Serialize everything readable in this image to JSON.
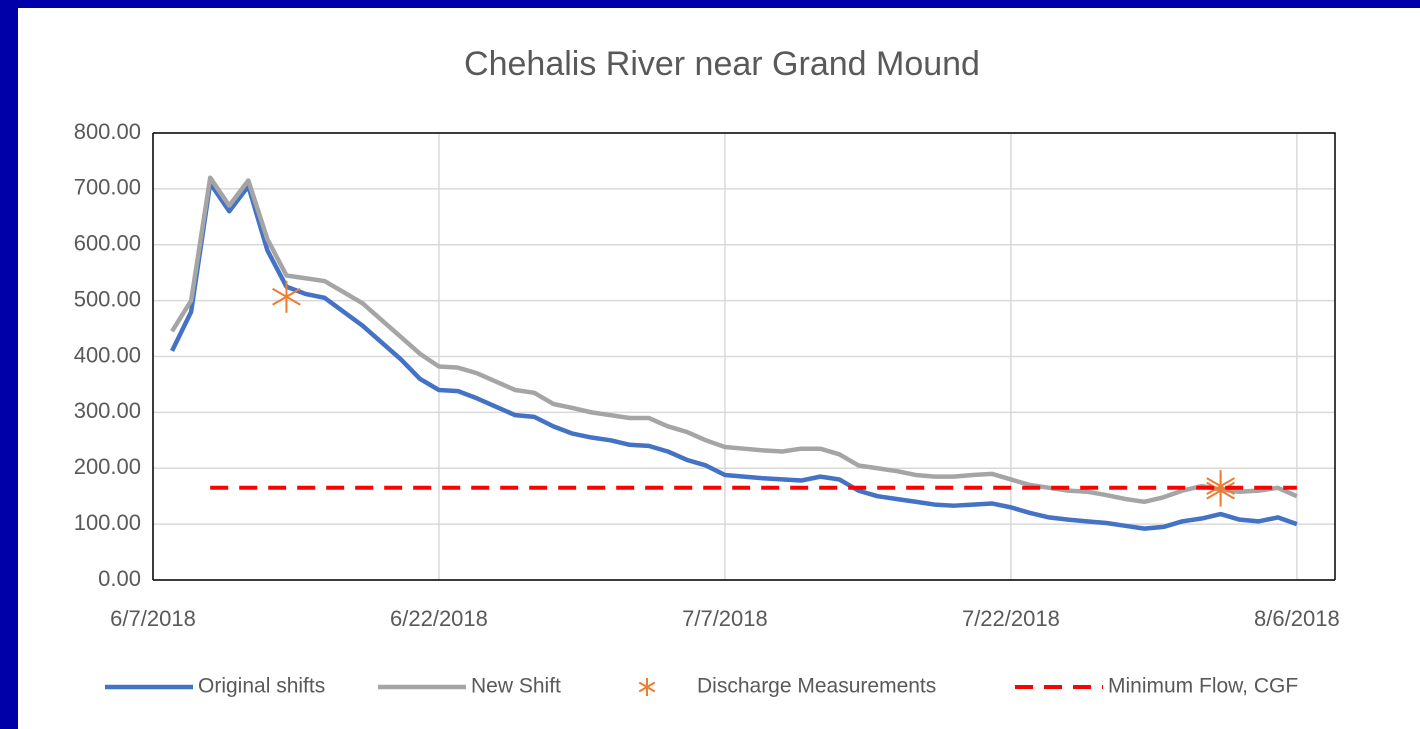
{
  "chart_data": {
    "type": "line",
    "title": "Chehalis River near Grand Mound",
    "xlim": [
      "6/7/2018",
      "8/8/2018"
    ],
    "xticks": [
      "6/7/2018",
      "6/22/2018",
      "7/7/2018",
      "7/22/2018",
      "8/6/2018"
    ],
    "ylim": [
      0,
      800
    ],
    "yticks": [
      {
        "value": 0,
        "label": "0.00"
      },
      {
        "value": 100,
        "label": "100.00"
      },
      {
        "value": 200,
        "label": "200.00"
      },
      {
        "value": 300,
        "label": "300.00"
      },
      {
        "value": 400,
        "label": "400.00"
      },
      {
        "value": 500,
        "label": "500.00"
      },
      {
        "value": 600,
        "label": "600.00"
      },
      {
        "value": 700,
        "label": "700.00"
      },
      {
        "value": 800,
        "label": "800.00"
      }
    ],
    "grid": true,
    "legend": "bottom",
    "series": [
      {
        "name": "Original shifts",
        "color": "#4472c4",
        "line_style": "solid",
        "x": [
          "6/8/2018",
          "6/9/2018",
          "6/10/2018",
          "6/11/2018",
          "6/12/2018",
          "6/13/2018",
          "6/14/2018",
          "6/15/2018",
          "6/16/2018",
          "6/17/2018",
          "6/18/2018",
          "6/19/2018",
          "6/20/2018",
          "6/21/2018",
          "6/22/2018",
          "6/23/2018",
          "6/24/2018",
          "6/25/2018",
          "6/26/2018",
          "6/27/2018",
          "6/28/2018",
          "6/29/2018",
          "6/30/2018",
          "7/1/2018",
          "7/2/2018",
          "7/3/2018",
          "7/4/2018",
          "7/5/2018",
          "7/6/2018",
          "7/7/2018",
          "7/8/2018",
          "7/9/2018",
          "7/10/2018",
          "7/11/2018",
          "7/12/2018",
          "7/13/2018",
          "7/14/2018",
          "7/15/2018",
          "7/16/2018",
          "7/17/2018",
          "7/18/2018",
          "7/19/2018",
          "7/20/2018",
          "7/21/2018",
          "7/22/2018",
          "7/23/2018",
          "7/24/2018",
          "7/25/2018",
          "7/26/2018",
          "7/27/2018",
          "7/28/2018",
          "7/29/2018",
          "7/30/2018",
          "7/31/2018",
          "8/1/2018",
          "8/2/2018",
          "8/3/2018",
          "8/4/2018",
          "8/5/2018",
          "8/6/2018"
        ],
        "values": [
          410,
          480,
          710,
          660,
          705,
          590,
          525,
          512,
          505,
          480,
          455,
          425,
          395,
          360,
          340,
          338,
          325,
          310,
          295,
          292,
          275,
          262,
          255,
          250,
          242,
          240,
          230,
          215,
          205,
          188,
          185,
          182,
          180,
          178,
          185,
          180,
          160,
          150,
          145,
          140,
          135,
          133,
          135,
          137,
          130,
          120,
          112,
          108,
          105,
          102,
          97,
          92,
          95,
          105,
          110,
          118,
          108,
          105,
          112,
          100
        ]
      },
      {
        "name": "New Shift",
        "color": "#a5a5a5",
        "line_style": "solid",
        "x": [
          "6/8/2018",
          "6/9/2018",
          "6/10/2018",
          "6/11/2018",
          "6/12/2018",
          "6/13/2018",
          "6/14/2018",
          "6/15/2018",
          "6/16/2018",
          "6/17/2018",
          "6/18/2018",
          "6/19/2018",
          "6/20/2018",
          "6/21/2018",
          "6/22/2018",
          "6/23/2018",
          "6/24/2018",
          "6/25/2018",
          "6/26/2018",
          "6/27/2018",
          "6/28/2018",
          "6/29/2018",
          "6/30/2018",
          "7/1/2018",
          "7/2/2018",
          "7/3/2018",
          "7/4/2018",
          "7/5/2018",
          "7/6/2018",
          "7/7/2018",
          "7/8/2018",
          "7/9/2018",
          "7/10/2018",
          "7/11/2018",
          "7/12/2018",
          "7/13/2018",
          "7/14/2018",
          "7/15/2018",
          "7/16/2018",
          "7/17/2018",
          "7/18/2018",
          "7/19/2018",
          "7/20/2018",
          "7/21/2018",
          "7/22/2018",
          "7/23/2018",
          "7/24/2018",
          "7/25/2018",
          "7/26/2018",
          "7/27/2018",
          "7/28/2018",
          "7/29/2018",
          "7/30/2018",
          "7/31/2018",
          "8/1/2018",
          "8/2/2018",
          "8/3/2018",
          "8/4/2018",
          "8/5/2018",
          "8/6/2018"
        ],
        "values": [
          445,
          500,
          720,
          670,
          715,
          610,
          545,
          540,
          535,
          515,
          495,
          465,
          435,
          405,
          382,
          380,
          370,
          355,
          340,
          335,
          315,
          308,
          300,
          295,
          290,
          290,
          275,
          265,
          250,
          238,
          235,
          232,
          230,
          235,
          235,
          225,
          205,
          200,
          195,
          188,
          185,
          185,
          188,
          190,
          180,
          170,
          165,
          160,
          158,
          152,
          145,
          140,
          148,
          160,
          168,
          162,
          158,
          160,
          165,
          150
        ]
      },
      {
        "name": "Discharge Measurements",
        "color": "#ed7d31",
        "line_style": "none",
        "marker": "asterisk",
        "x": [
          "6/14/2018",
          "8/2/2018",
          "8/2/2018"
        ],
        "values": [
          507,
          168,
          160
        ]
      },
      {
        "name": "Minimum Flow, CGF",
        "color": "#ff0000",
        "line_style": "dashed",
        "x": [
          "6/10/2018",
          "8/6/2018"
        ],
        "values": [
          165,
          165
        ]
      }
    ]
  }
}
